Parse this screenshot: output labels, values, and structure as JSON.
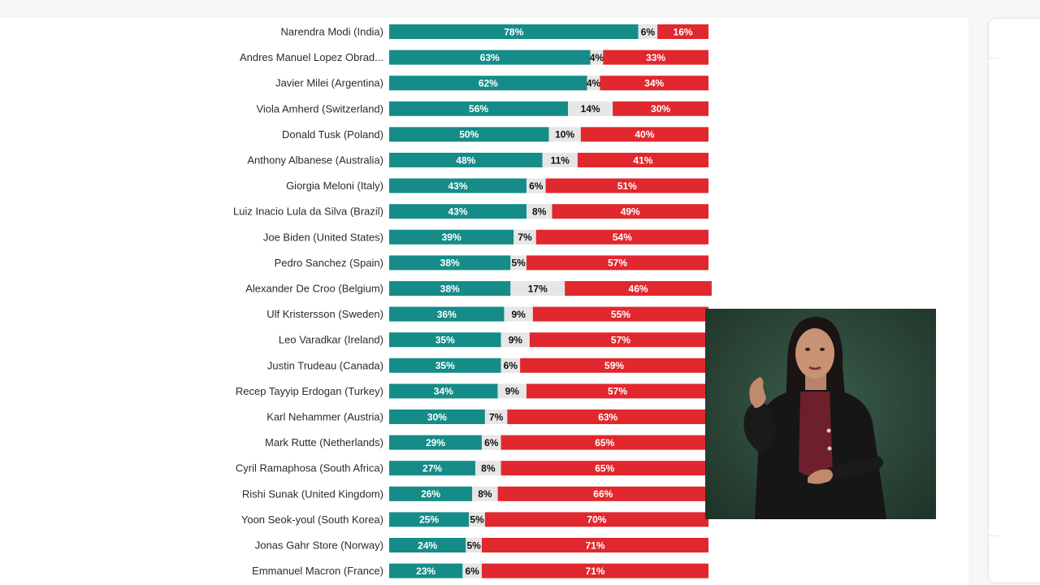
{
  "colors": {
    "approve": "#168c88",
    "neutral": "#e6e6e6",
    "disapprove": "#e0282e"
  },
  "chart_data": {
    "type": "bar",
    "stacked": true,
    "orientation": "horizontal",
    "categories": [
      "Narendra Modi (India)",
      "Andres Manuel Lopez Obrad...",
      "Javier Milei (Argentina)",
      "Viola Amherd (Switzerland)",
      "Donald Tusk (Poland)",
      "Anthony Albanese (Australia)",
      "Giorgia Meloni (Italy)",
      "Luiz Inacio Lula da Silva (Brazil)",
      "Joe Biden (United States)",
      "Pedro Sanchez (Spain)",
      "Alexander De Croo (Belgium)",
      "Ulf Kristersson (Sweden)",
      "Leo Varadkar (Ireland)",
      "Justin Trudeau (Canada)",
      "Recep Tayyip Erdogan (Turkey)",
      "Karl Nehammer (Austria)",
      "Mark Rutte (Netherlands)",
      "Cyril Ramaphosa (South Africa)",
      "Rishi Sunak (United Kingdom)",
      "Yoon Seok-youl (South Korea)",
      "Jonas Gahr Store (Norway)",
      "Emmanuel Macron (France)"
    ],
    "series": [
      {
        "values": [
          78,
          63,
          62,
          56,
          50,
          48,
          43,
          43,
          39,
          38,
          38,
          36,
          35,
          35,
          34,
          30,
          29,
          27,
          26,
          25,
          24,
          23
        ]
      },
      {
        "values": [
          6,
          4,
          4,
          14,
          10,
          11,
          6,
          8,
          7,
          5,
          17,
          9,
          9,
          6,
          9,
          7,
          6,
          8,
          8,
          5,
          5,
          6
        ]
      },
      {
        "values": [
          16,
          33,
          34,
          30,
          40,
          41,
          51,
          49,
          54,
          57,
          46,
          55,
          57,
          59,
          57,
          63,
          65,
          65,
          66,
          70,
          71,
          71
        ]
      }
    ],
    "value_suffix": "%",
    "xlim": [
      0,
      100
    ],
    "legend": "none",
    "grid": false
  },
  "overlay": {
    "type": "sign-language-interpreter-video"
  }
}
